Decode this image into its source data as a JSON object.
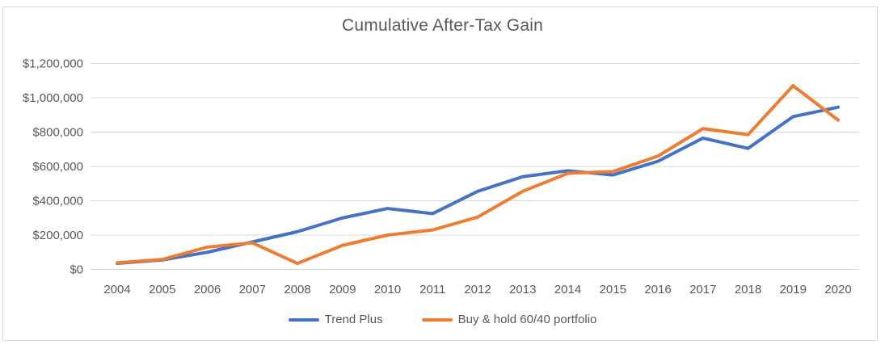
{
  "chart_data": {
    "type": "line",
    "title": "Cumulative After-Tax Gain",
    "categories": [
      "2004",
      "2005",
      "2006",
      "2007",
      "2008",
      "2009",
      "2010",
      "2011",
      "2012",
      "2013",
      "2014",
      "2015",
      "2016",
      "2017",
      "2018",
      "2019",
      "2020"
    ],
    "series": [
      {
        "name": "Trend Plus",
        "color": "#4472C4",
        "values": [
          35000,
          55000,
          100000,
          160000,
          220000,
          300000,
          355000,
          325000,
          455000,
          540000,
          575000,
          550000,
          630000,
          765000,
          705000,
          890000,
          945000
        ]
      },
      {
        "name": "Buy & hold 60/40 portfolio",
        "color": "#ED7D31",
        "values": [
          38000,
          58000,
          130000,
          155000,
          35000,
          140000,
          200000,
          230000,
          305000,
          455000,
          560000,
          570000,
          660000,
          820000,
          785000,
          1070000,
          870000
        ]
      }
    ],
    "y_axis": {
      "min": 0,
      "max": 1200000,
      "step": 200000,
      "tick_labels": [
        "$0",
        "$200,000",
        "$400,000",
        "$600,000",
        "$800,000",
        "$1,000,000",
        "$1,200,000"
      ]
    },
    "x_axis": {
      "tick_labels": [
        "2004",
        "2005",
        "2006",
        "2007",
        "2008",
        "2009",
        "2010",
        "2011",
        "2012",
        "2013",
        "2014",
        "2015",
        "2016",
        "2017",
        "2018",
        "2019",
        "2020"
      ]
    },
    "grid": true,
    "legend_position": "bottom"
  },
  "colors": {
    "text": "#595959",
    "gridline": "#D9D9D9",
    "border": "#D9D9D9",
    "background": "#FFFFFF",
    "series_1": "#4472C4",
    "series_2": "#ED7D31"
  }
}
